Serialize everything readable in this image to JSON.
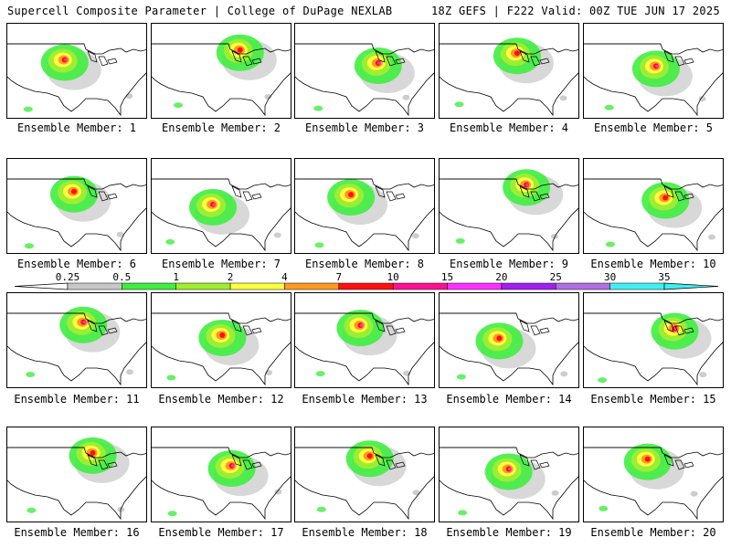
{
  "header": {
    "title_left": "Supercell Composite Parameter | College of DuPage NEXLAB",
    "title_right": "18Z GEFS | F222 Valid: 00Z TUE JUN 17 2025"
  },
  "panels": [
    {
      "member": 1,
      "label": "Ensemble Member: 1"
    },
    {
      "member": 2,
      "label": "Ensemble Member: 2"
    },
    {
      "member": 3,
      "label": "Ensemble Member: 3"
    },
    {
      "member": 4,
      "label": "Ensemble Member: 4"
    },
    {
      "member": 5,
      "label": "Ensemble Member: 5"
    },
    {
      "member": 6,
      "label": "Ensemble Member: 6"
    },
    {
      "member": 7,
      "label": "Ensemble Member: 7"
    },
    {
      "member": 8,
      "label": "Ensemble Member: 8"
    },
    {
      "member": 9,
      "label": "Ensemble Member: 9"
    },
    {
      "member": 10,
      "label": "Ensemble Member: 10"
    },
    {
      "member": 11,
      "label": "Ensemble Member: 11"
    },
    {
      "member": 12,
      "label": "Ensemble Member: 12"
    },
    {
      "member": 13,
      "label": "Ensemble Member: 13"
    },
    {
      "member": 14,
      "label": "Ensemble Member: 14"
    },
    {
      "member": 15,
      "label": "Ensemble Member: 15"
    },
    {
      "member": 16,
      "label": "Ensemble Member: 16"
    },
    {
      "member": 17,
      "label": "Ensemble Member: 17"
    },
    {
      "member": 18,
      "label": "Ensemble Member: 18"
    },
    {
      "member": 19,
      "label": "Ensemble Member: 19"
    },
    {
      "member": 20,
      "label": "Ensemble Member: 20"
    }
  ],
  "colorbar": {
    "ticks": [
      "0.25",
      "0.5",
      "1",
      "2",
      "4",
      "7",
      "10",
      "15",
      "20",
      "25",
      "30",
      "35"
    ],
    "colors": [
      "#c8c8c8",
      "#40ee40",
      "#a0ee30",
      "#ffff40",
      "#ff9a20",
      "#ff1010",
      "#ff1090",
      "#ff30ff",
      "#a020f0",
      "#b070e0",
      "#40f0f0"
    ]
  }
}
